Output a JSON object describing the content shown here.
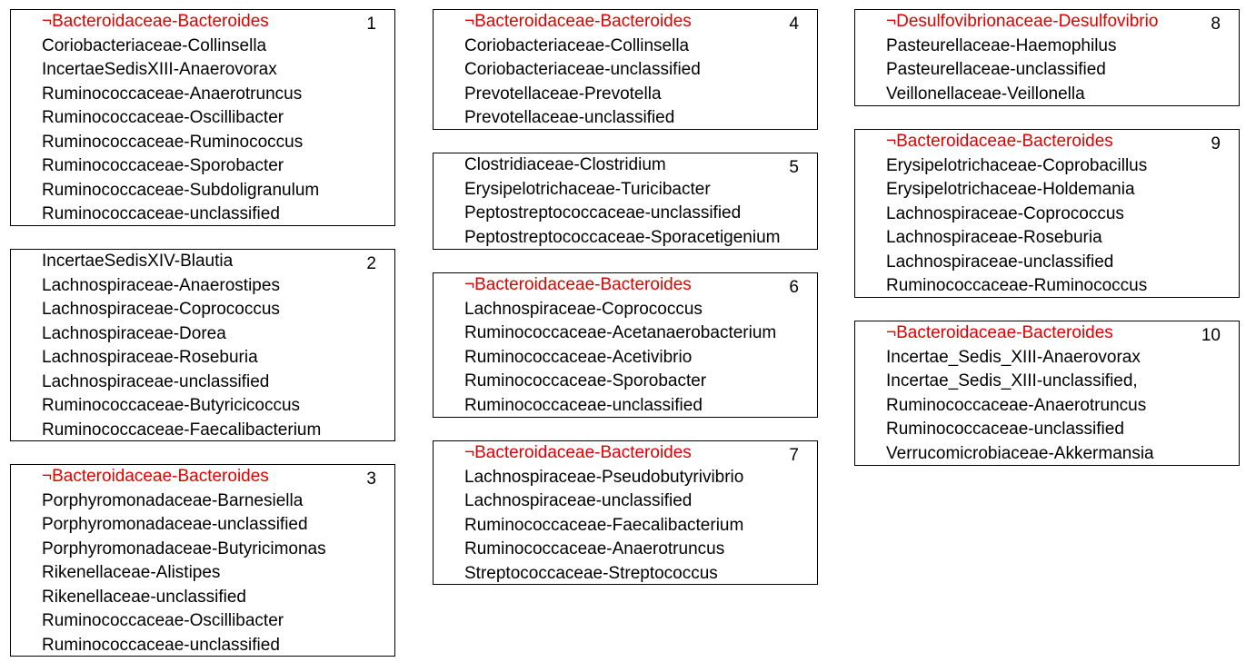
{
  "groups": [
    {
      "number": "1",
      "items": [
        {
          "text": "¬Bacteroidaceae-Bacteroides",
          "highlight": true
        },
        {
          "text": "Coriobacteriaceae-Collinsella"
        },
        {
          "text": "IncertaeSedisXIII-Anaerovorax"
        },
        {
          "text": "Ruminococcaceae-Anaerotruncus"
        },
        {
          "text": "Ruminococcaceae-Oscillibacter"
        },
        {
          "text": "Ruminococcaceae-Ruminococcus"
        },
        {
          "text": "Ruminococcaceae-Sporobacter"
        },
        {
          "text": "Ruminococcaceae-Subdoligranulum"
        },
        {
          "text": "Ruminococcaceae-unclassified"
        }
      ]
    },
    {
      "number": "2",
      "items": [
        {
          "text": "IncertaeSedisXIV-Blautia"
        },
        {
          "text": "Lachnospiraceae-Anaerostipes"
        },
        {
          "text": "Lachnospiraceae-Coprococcus"
        },
        {
          "text": "Lachnospiraceae-Dorea"
        },
        {
          "text": "Lachnospiraceae-Roseburia"
        },
        {
          "text": "Lachnospiraceae-unclassified"
        },
        {
          "text": "Ruminococcaceae-Butyricicoccus"
        },
        {
          "text": "Ruminococcaceae-Faecalibacterium"
        }
      ]
    },
    {
      "number": "3",
      "items": [
        {
          "text": "¬Bacteroidaceae-Bacteroides",
          "highlight": true
        },
        {
          "text": "Porphyromonadaceae-Barnesiella"
        },
        {
          "text": "Porphyromonadaceae-unclassified"
        },
        {
          "text": "Porphyromonadaceae-Butyricimonas"
        },
        {
          "text": "Rikenellaceae-Alistipes"
        },
        {
          "text": "Rikenellaceae-unclassified"
        },
        {
          "text": "Ruminococcaceae-Oscillibacter"
        },
        {
          "text": "Ruminococcaceae-unclassified"
        }
      ]
    },
    {
      "number": "4",
      "items": [
        {
          "text": "¬Bacteroidaceae-Bacteroides",
          "highlight": true
        },
        {
          "text": "Coriobacteriaceae-Collinsella"
        },
        {
          "text": "Coriobacteriaceae-unclassified"
        },
        {
          "text": "Prevotellaceae-Prevotella"
        },
        {
          "text": "Prevotellaceae-unclassified"
        }
      ]
    },
    {
      "number": "5",
      "items": [
        {
          "text": "Clostridiaceae-Clostridium"
        },
        {
          "text": "Erysipelotrichaceae-Turicibacter"
        },
        {
          "text": "Peptostreptococcaceae-unclassified"
        },
        {
          "text": "Peptostreptococcaceae-Sporacetigenium"
        }
      ]
    },
    {
      "number": "6",
      "items": [
        {
          "text": "¬Bacteroidaceae-Bacteroides",
          "highlight": true
        },
        {
          "text": "Lachnospiraceae-Coprococcus"
        },
        {
          "text": "Ruminococcaceae-Acetanaerobacterium"
        },
        {
          "text": "Ruminococcaceae-Acetivibrio"
        },
        {
          "text": "Ruminococcaceae-Sporobacter"
        },
        {
          "text": "Ruminococcaceae-unclassified"
        }
      ]
    },
    {
      "number": "7",
      "items": [
        {
          "text": "¬Bacteroidaceae-Bacteroides",
          "highlight": true
        },
        {
          "text": "Lachnospiraceae-Pseudobutyrivibrio"
        },
        {
          "text": "Lachnospiraceae-unclassified"
        },
        {
          "text": "Ruminococcaceae-Faecalibacterium"
        },
        {
          "text": "Ruminococcaceae-Anaerotruncus"
        },
        {
          "text": "Streptococcaceae-Streptococcus"
        }
      ]
    },
    {
      "number": "8",
      "items": [
        {
          "text": "¬Desulfovibrionaceae-Desulfovibrio",
          "highlight": true
        },
        {
          "text": "Pasteurellaceae-Haemophilus"
        },
        {
          "text": "Pasteurellaceae-unclassified"
        },
        {
          "text": "Veillonellaceae-Veillonella"
        }
      ]
    },
    {
      "number": "9",
      "items": [
        {
          "text": "¬Bacteroidaceae-Bacteroides",
          "highlight": true
        },
        {
          "text": "Erysipelotrichaceae-Coprobacillus"
        },
        {
          "text": "Erysipelotrichaceae-Holdemania"
        },
        {
          "text": "Lachnospiraceae-Coprococcus"
        },
        {
          "text": "Lachnospiraceae-Roseburia"
        },
        {
          "text": "Lachnospiraceae-unclassified"
        },
        {
          "text": "Ruminococcaceae-Ruminococcus"
        }
      ]
    },
    {
      "number": "10",
      "items": [
        {
          "text": "¬Bacteroidaceae-Bacteroides",
          "highlight": true
        },
        {
          "text": "Incertae_Sedis_XIII-Anaerovorax"
        },
        {
          "text": "Incertae_Sedis_XIII-unclassified,"
        },
        {
          "text": "Ruminococcaceae-Anaerotruncus"
        },
        {
          "text": "Ruminococcaceae-unclassified"
        },
        {
          "text": "Verrucomicrobiaceae-Akkermansia"
        }
      ]
    }
  ],
  "colors": {
    "highlight": "#e00000",
    "text": "#000000",
    "border": "#000000"
  }
}
